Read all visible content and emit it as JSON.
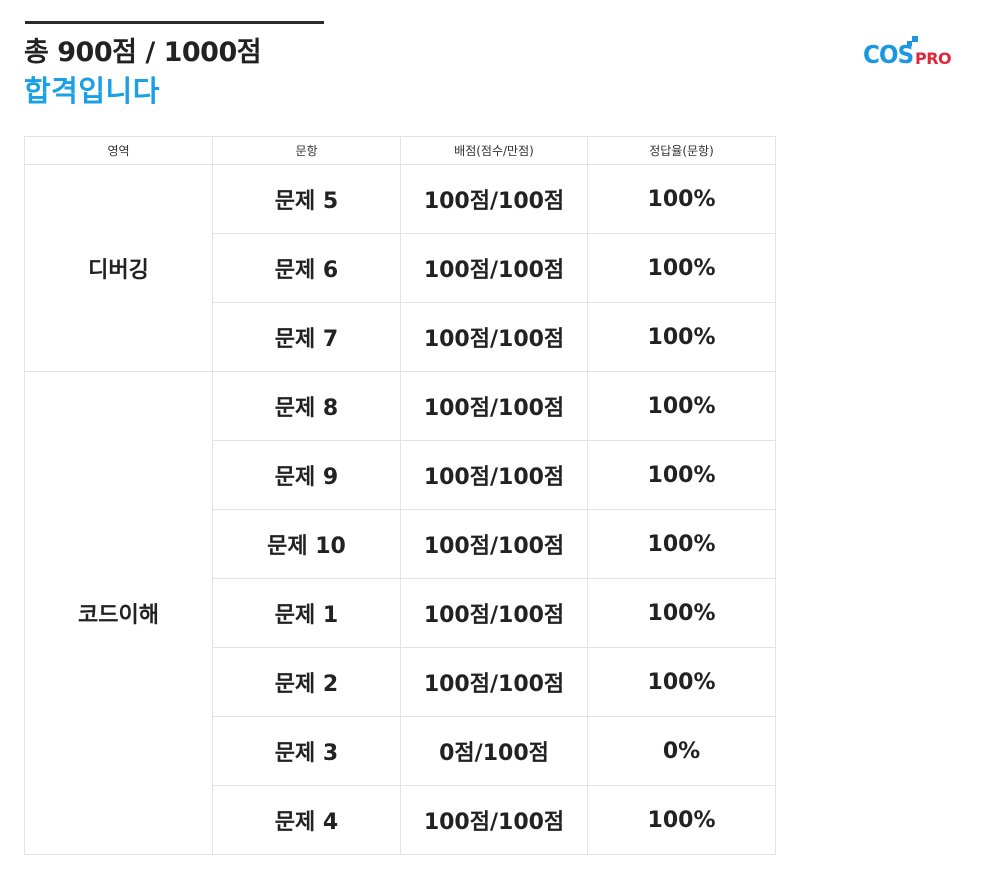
{
  "header": {
    "score_text": "총 900점 / 1000점",
    "result_text": "합격입니다",
    "result_color": "#1aa0e6"
  },
  "logo": {
    "cos": "COS",
    "pro": "PRO",
    "brand_blue": "#1a97e0",
    "brand_red": "#e2263a"
  },
  "table": {
    "columns": [
      "영역",
      "문항",
      "배점(점수/만점)",
      "정답율(문항)"
    ],
    "groups": [
      {
        "area": "디버깅",
        "rows": [
          {
            "question": "문제 5",
            "score": "100점/100점",
            "rate": "100%"
          },
          {
            "question": "문제 6",
            "score": "100점/100점",
            "rate": "100%"
          },
          {
            "question": "문제 7",
            "score": "100점/100점",
            "rate": "100%"
          }
        ]
      },
      {
        "area": "코드이해",
        "rows": [
          {
            "question": "문제 8",
            "score": "100점/100점",
            "rate": "100%"
          },
          {
            "question": "문제 9",
            "score": "100점/100점",
            "rate": "100%"
          },
          {
            "question": "문제 10",
            "score": "100점/100점",
            "rate": "100%"
          },
          {
            "question": "문제 1",
            "score": "100점/100점",
            "rate": "100%"
          },
          {
            "question": "문제 2",
            "score": "100점/100점",
            "rate": "100%"
          },
          {
            "question": "문제 3",
            "score": "0점/100점",
            "rate": "0%"
          },
          {
            "question": "문제 4",
            "score": "100점/100점",
            "rate": "100%"
          }
        ]
      }
    ]
  }
}
